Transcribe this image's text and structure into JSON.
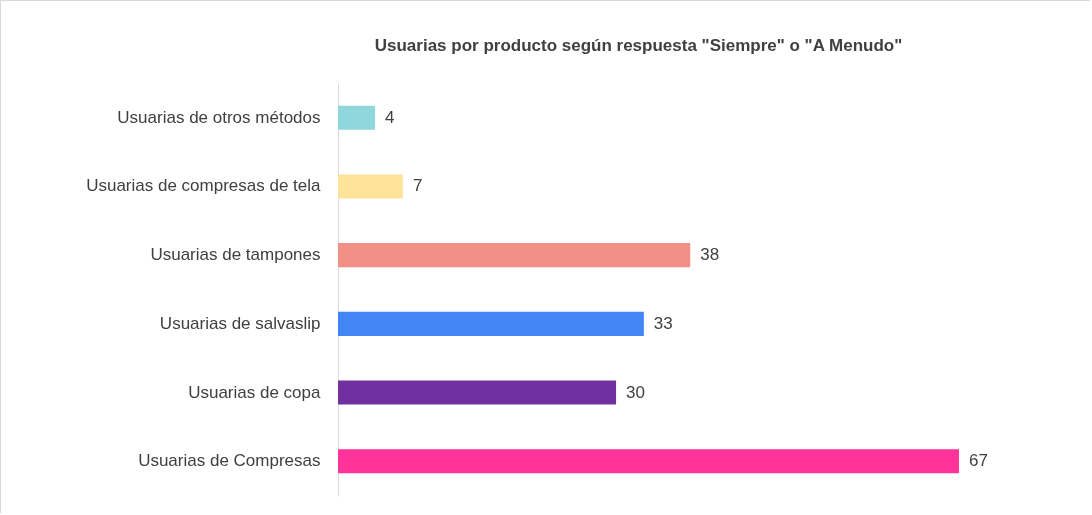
{
  "chart_data": {
    "type": "bar",
    "orientation": "horizontal",
    "title": "Usuarias por producto según respuesta \"Siempre\" o \"A Menudo\"",
    "categories": [
      "Usuarias de otros métodos",
      "Usuarias de compresas de tela",
      "Usuarias de tampones",
      "Usuarias de salvaslip",
      "Usuarias de copa",
      "Usuarias de Compresas"
    ],
    "values": [
      4,
      7,
      38,
      33,
      30,
      67
    ],
    "colors": [
      "#8fd7dc",
      "#fde49a",
      "#f28f86",
      "#4285f4",
      "#7030a0",
      "#ff3399"
    ],
    "data_labels": true,
    "tick_labels": "y"
  }
}
